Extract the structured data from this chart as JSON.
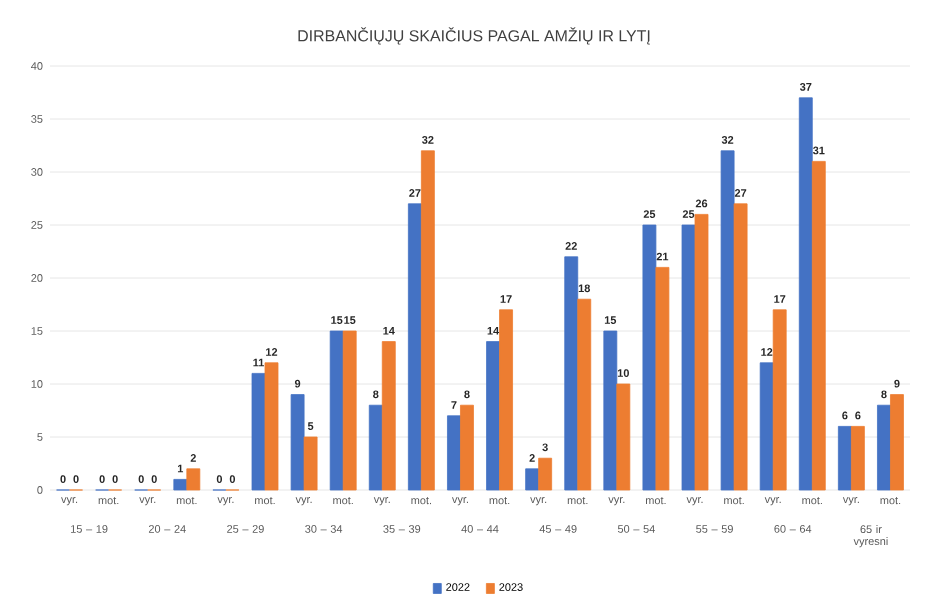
{
  "chart_data": {
    "type": "bar",
    "title": "DIRBANČIŲJŲ SKAIČIUS PAGAL AMŽIŲ IR LYTĮ",
    "categories": [
      "vyr.",
      "mot.",
      "vyr.",
      "mot.",
      "vyr.",
      "mot.",
      "vyr.",
      "mot.",
      "vyr.",
      "mot.",
      "vyr.",
      "mot.",
      "vyr.",
      "mot.",
      "vyr.",
      "mot.",
      "vyr.",
      "mot.",
      "vyr.",
      "mot.",
      "vyr.",
      "mot."
    ],
    "annotations": [
      "15 – 19",
      "20 – 24",
      "25 – 29",
      "30 – 34",
      "35 – 39",
      "40 – 44",
      "45 – 49",
      "50 – 54",
      "55 – 59",
      "60 – 64",
      "65 ir vyresni"
    ],
    "series": [
      {
        "name": "2022",
        "color": "#4472c4",
        "values": [
          0,
          0,
          0,
          1,
          0,
          11,
          9,
          15,
          8,
          27,
          7,
          14,
          2,
          22,
          15,
          25,
          25,
          32,
          12,
          37,
          6,
          8
        ]
      },
      {
        "name": "2023",
        "color": "#ed7d31",
        "values": [
          0,
          0,
          0,
          2,
          0,
          12,
          5,
          15,
          14,
          32,
          8,
          17,
          3,
          18,
          10,
          21,
          26,
          27,
          17,
          31,
          6,
          9
        ]
      }
    ],
    "ylim": [
      0,
      40
    ],
    "yticks": [
      0,
      5,
      10,
      15,
      20,
      25,
      30,
      35,
      40
    ],
    "grid": "y",
    "legend": "bottom",
    "data_labels": true
  }
}
